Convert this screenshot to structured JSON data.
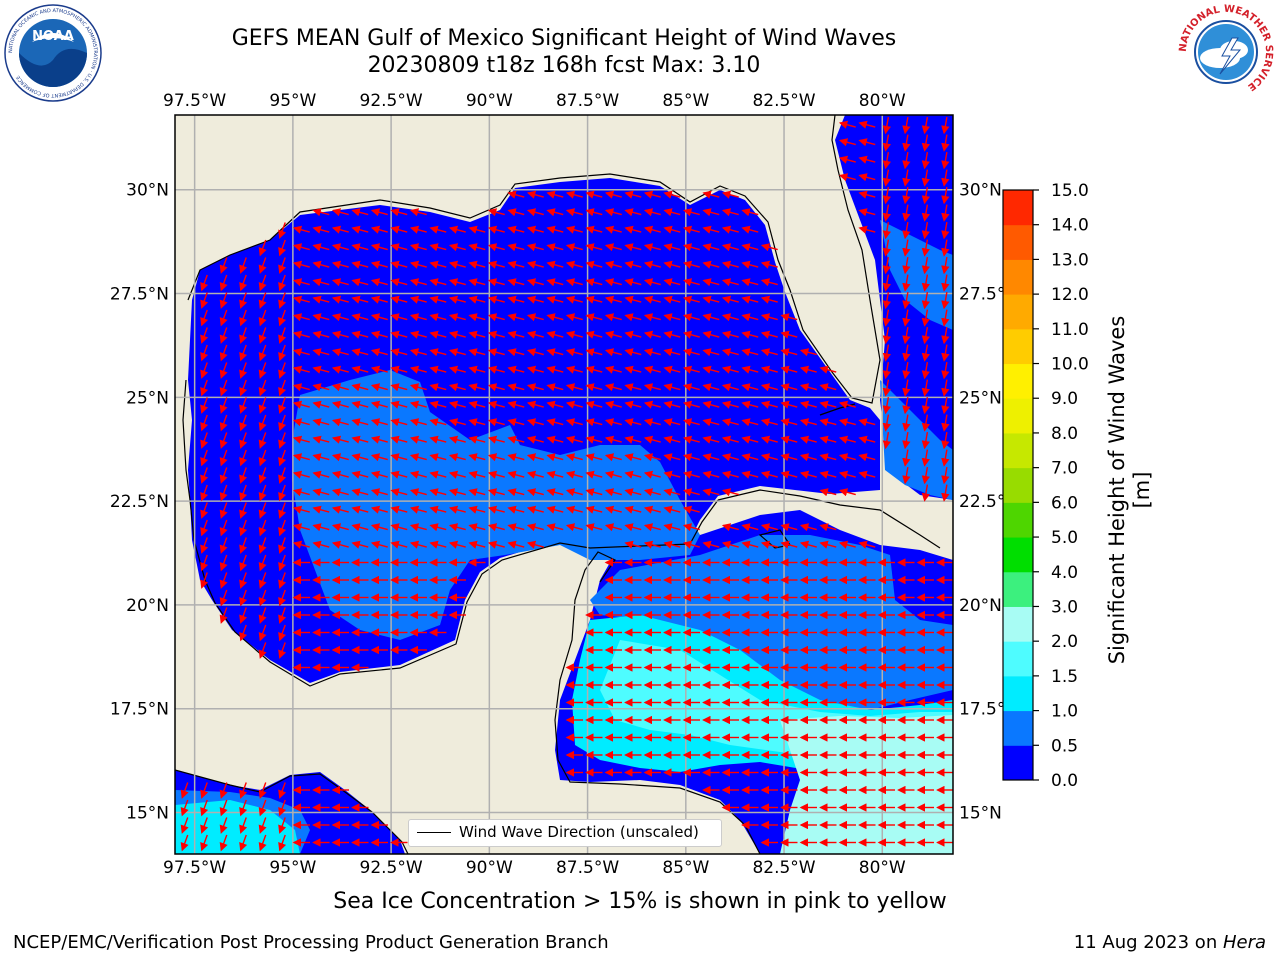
{
  "header": {
    "title_line1": "GEFS MEAN Gulf of Mexico Significant Height of Wind Waves",
    "title_line2": "20230809 t18z 168h fcst   Max: 3.10"
  },
  "logos": {
    "left": {
      "name": "noaa-logo",
      "text": "NOAA",
      "ring_text": "NATIONAL OCEANIC AND ATMOSPHERIC ADMINISTRATION · U.S. DEPARTMENT OF COMMERCE"
    },
    "right": {
      "name": "nws-logo",
      "ring_text": "NATIONAL WEATHER SERVICE"
    }
  },
  "map": {
    "lon_labels": [
      "97.5°W",
      "95°W",
      "92.5°W",
      "90°W",
      "87.5°W",
      "85°W",
      "82.5°W",
      "80°W"
    ],
    "lat_labels": [
      "30°N",
      "27.5°N",
      "25°N",
      "22.5°N",
      "20°N",
      "17.5°N",
      "15°N"
    ],
    "lon_range": [
      -98,
      -78.2
    ],
    "lat_range": [
      14,
      31.8
    ],
    "grid": true,
    "land_color": "#efecdc",
    "arrow_color": "#ff0000",
    "legend": {
      "label": "Wind Wave Direction (unscaled)",
      "position": "lower-center"
    }
  },
  "colorbar": {
    "label": "Significant Height of Wind Waves [m]",
    "ticks": [
      "0.0",
      "0.5",
      "1.0",
      "1.5",
      "2.0",
      "3.0",
      "4.0",
      "5.0",
      "6.0",
      "7.0",
      "8.0",
      "9.0",
      "10.0",
      "11.0",
      "12.0",
      "13.0",
      "14.0",
      "15.0"
    ],
    "colors": [
      "#0000ff",
      "#0a78ff",
      "#00ecff",
      "#4efcff",
      "#a8fcf4",
      "#3cf07e",
      "#00de00",
      "#4ed600",
      "#98dc00",
      "#c6e800",
      "#eef000",
      "#fff000",
      "#ffcc00",
      "#ffaa00",
      "#ff8800",
      "#ff5a00",
      "#ff2800",
      "#ff0000"
    ]
  },
  "subtitle": "Sea Ice Concentration > 15% is shown in pink to yellow",
  "footer": {
    "left": "NCEP/EMC/Verification Post Processing Product Generation Branch",
    "right_prefix": "11 Aug 2023 on ",
    "right_italic": "Hera"
  }
}
